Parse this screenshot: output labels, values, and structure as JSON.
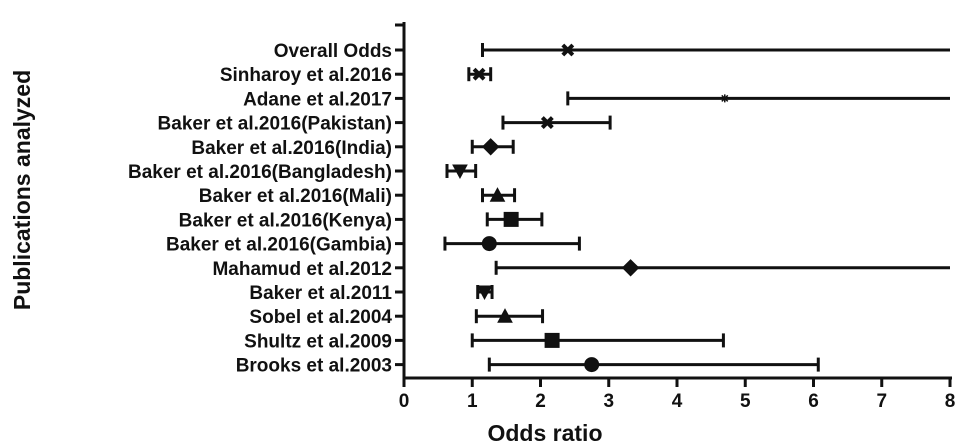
{
  "chart_data": {
    "type": "forest",
    "xlabel": "Odds ratio",
    "ylabel": "Publications analyzed",
    "xlim": [
      0,
      8
    ],
    "xticks": [
      0,
      1,
      2,
      3,
      4,
      5,
      6,
      7,
      8
    ],
    "grid": false,
    "color": "#111111",
    "studies": [
      {
        "label": "Overall Odds",
        "or": 2.4,
        "lower": 1.15,
        "upper": 8.0,
        "marker": "x"
      },
      {
        "label": "Sinharoy et al.2016",
        "or": 1.1,
        "lower": 0.95,
        "upper": 1.27,
        "marker": "x"
      },
      {
        "label": "Adane et al.2017",
        "or": 4.7,
        "lower": 2.4,
        "upper": 8.0,
        "marker": "star"
      },
      {
        "label": "Baker et al.2016(Pakistan)",
        "or": 2.1,
        "lower": 1.45,
        "upper": 3.02,
        "marker": "x"
      },
      {
        "label": "Baker et al.2016(India)",
        "or": 1.27,
        "lower": 1.0,
        "upper": 1.6,
        "marker": "diamond"
      },
      {
        "label": "Baker et al.2016(Bangladesh)",
        "or": 0.82,
        "lower": 0.63,
        "upper": 1.05,
        "marker": "triangle-down"
      },
      {
        "label": "Baker et al.2016(Mali)",
        "or": 1.37,
        "lower": 1.15,
        "upper": 1.62,
        "marker": "triangle-up"
      },
      {
        "label": "Baker et al.2016(Kenya)",
        "or": 1.57,
        "lower": 1.22,
        "upper": 2.02,
        "marker": "square"
      },
      {
        "label": "Baker et al.2016(Gambia)",
        "or": 1.25,
        "lower": 0.6,
        "upper": 2.57,
        "marker": "circle"
      },
      {
        "label": "Mahamud et al.2012",
        "or": 3.32,
        "lower": 1.35,
        "upper": 8.0,
        "marker": "diamond"
      },
      {
        "label": "Baker et al.2011",
        "or": 1.18,
        "lower": 1.08,
        "upper": 1.29,
        "marker": "triangle-down"
      },
      {
        "label": "Sobel et al.2004",
        "or": 1.48,
        "lower": 1.06,
        "upper": 2.03,
        "marker": "triangle-up"
      },
      {
        "label": "Shultz et al.2009",
        "or": 2.17,
        "lower": 1.0,
        "upper": 4.68,
        "marker": "square"
      },
      {
        "label": "Brooks et al.2003",
        "or": 2.75,
        "lower": 1.25,
        "upper": 6.07,
        "marker": "circle"
      }
    ]
  }
}
